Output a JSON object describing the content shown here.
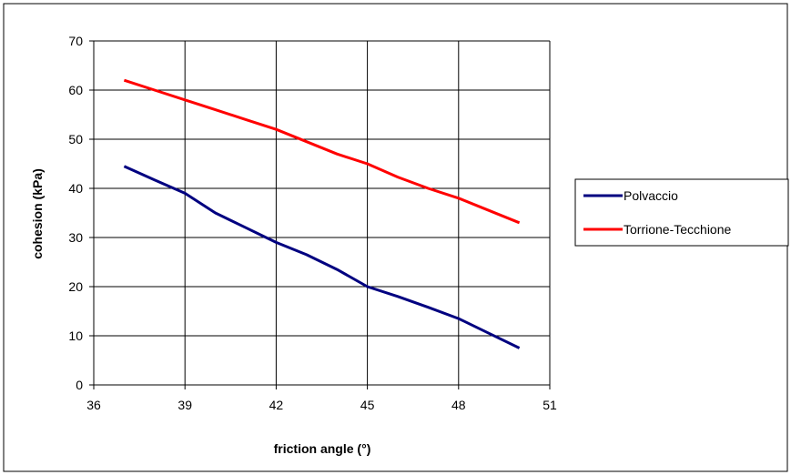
{
  "chart_data": {
    "type": "line",
    "xlabel": "friction angle (°)",
    "ylabel": "cohesion (kPa)",
    "xlim": [
      36,
      51
    ],
    "ylim": [
      0,
      70
    ],
    "xticks": [
      36,
      39,
      42,
      45,
      48,
      51
    ],
    "yticks": [
      0,
      10,
      20,
      30,
      40,
      50,
      60,
      70
    ],
    "grid": true,
    "legend_position": "right",
    "series": [
      {
        "name": "Polvaccio",
        "color": "#000080",
        "x": [
          37,
          38,
          39,
          40,
          41,
          42,
          43,
          44,
          45,
          46,
          47,
          48,
          49,
          50
        ],
        "y": [
          44.5,
          41.7,
          39,
          35,
          32,
          29,
          26.5,
          23.5,
          20,
          18,
          15.8,
          13.5,
          10.5,
          7.5
        ]
      },
      {
        "name": "Torrione-Tecchione",
        "color": "#ff0000",
        "x": [
          37,
          38,
          39,
          40,
          41,
          42,
          43,
          44,
          45,
          46,
          47,
          48,
          49,
          50
        ],
        "y": [
          62,
          60,
          58,
          56,
          54,
          52,
          49.5,
          47,
          45,
          42.3,
          40,
          38,
          35.5,
          33
        ]
      }
    ]
  }
}
